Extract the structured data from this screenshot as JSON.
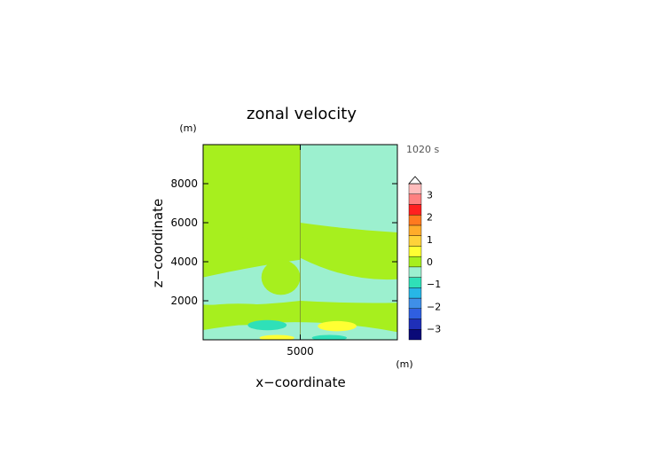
{
  "chart_data": {
    "type": "heatmap",
    "title": "zonal velocity",
    "xlabel": "x−coordinate",
    "ylabel": "z−coordinate",
    "x_unit": "(m)",
    "y_unit": "(m)",
    "time_label": "1020 s",
    "xlim": [
      0,
      10000
    ],
    "ylim": [
      0,
      10000
    ],
    "x_ticks": [
      {
        "value": 5000,
        "label": "5000"
      }
    ],
    "y_ticks": [
      {
        "value": 2000,
        "label": "2000"
      },
      {
        "value": 4000,
        "label": "4000"
      },
      {
        "value": 6000,
        "label": "6000"
      },
      {
        "value": 8000,
        "label": "8000"
      }
    ],
    "colorbar": {
      "levels": [
        -3.5,
        -3,
        -2.5,
        -2,
        -1.5,
        -1,
        -0.5,
        0,
        0.5,
        1,
        1.5,
        2,
        2.5,
        3,
        3.5
      ],
      "colors": [
        "#0a0a78",
        "#1f2fb8",
        "#2f5fe0",
        "#3f8fe8",
        "#27b6e6",
        "#2fe0b8",
        "#9cf0cf",
        "#a7ef1e",
        "#ffff33",
        "#ffd23a",
        "#ffac2a",
        "#ff7a1f",
        "#ff2020",
        "#ff8080",
        "#ffbcbc"
      ],
      "ticks": [
        {
          "value": -3,
          "label": "−3"
        },
        {
          "value": -2,
          "label": "−2"
        },
        {
          "value": -1,
          "label": "−1"
        },
        {
          "value": 0,
          "label": "0"
        },
        {
          "value": 1,
          "label": "1"
        },
        {
          "value": 2,
          "label": "2"
        },
        {
          "value": 3,
          "label": "3"
        }
      ]
    },
    "field": {
      "background": 0.25,
      "bands": [
        {
          "value": -0.25,
          "x0": 0,
          "x1": 5000,
          "y_left": 8500,
          "y_mid": 8500,
          "y_right": 8500,
          "top": 10000
        },
        {
          "value": 0.25,
          "x0": 0,
          "x1": 5000,
          "y_left": 5500,
          "y_mid": 5200,
          "y_right": 4900,
          "top": 10000
        },
        {
          "value": -0.25,
          "x0": 5000,
          "x1": 10000,
          "y_left": 6000,
          "y_mid": 5700,
          "y_right": 5500,
          "top": 10000
        },
        {
          "value": -0.25,
          "x0": 0,
          "x1": 5000,
          "y_left": 3200,
          "y_mid": 3700,
          "y_right": 4100,
          "bottom_left": 1800,
          "bottom_mid": 1800,
          "bottom_right": 2000
        },
        {
          "value": -0.25,
          "x0": 5000,
          "x1": 10000,
          "y_left": 4200,
          "y_mid": 3300,
          "y_right": 3100,
          "bottom_left": 2000,
          "bottom_mid": 1900,
          "bottom_right": 1900
        },
        {
          "value": -0.25,
          "x0": 0,
          "x1": 10000,
          "y_left": 500,
          "y_mid": 900,
          "y_right": 400,
          "bottom_left": 0,
          "bottom_mid": 0,
          "bottom_right": 0
        }
      ],
      "blobs": [
        {
          "value": 0.25,
          "cx": 4000,
          "cy": 3200,
          "rx": 1000,
          "ry": 900
        },
        {
          "value": 0.25,
          "cx": 1800,
          "cy": 1300,
          "rx": 2800,
          "ry": 550
        },
        {
          "value": 0.25,
          "cx": 8200,
          "cy": 1300,
          "rx": 2800,
          "ry": 550
        },
        {
          "value": -0.75,
          "cx": 3300,
          "cy": 750,
          "rx": 1000,
          "ry": 260
        },
        {
          "value": 0.75,
          "cx": 6900,
          "cy": 700,
          "rx": 1000,
          "ry": 260
        },
        {
          "value": 0.75,
          "cx": 3800,
          "cy": 100,
          "rx": 900,
          "ry": 150
        },
        {
          "value": -0.75,
          "cx": 6500,
          "cy": 100,
          "rx": 900,
          "ry": 150
        }
      ],
      "divider_x": 5000
    }
  }
}
